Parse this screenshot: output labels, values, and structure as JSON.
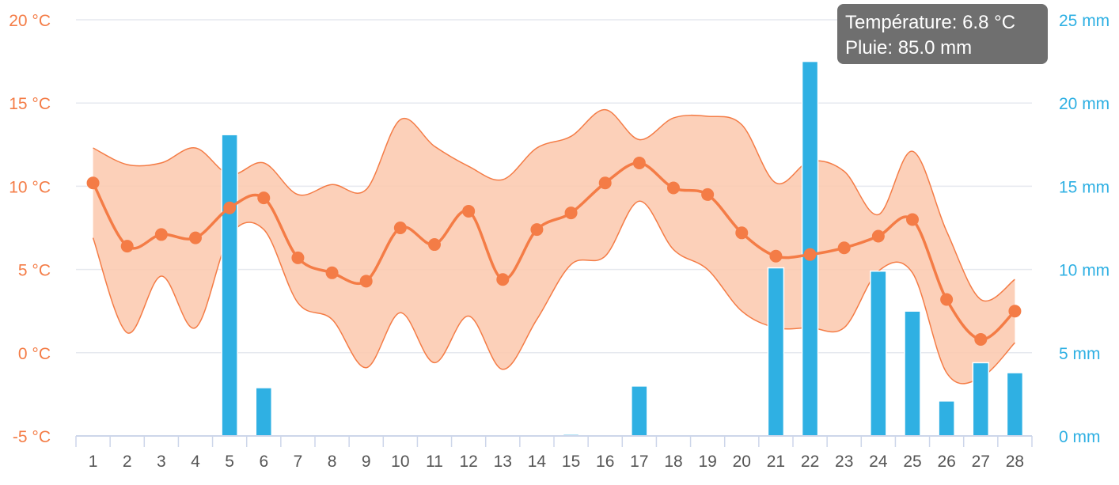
{
  "chart_data": {
    "type": "line",
    "x": [
      "1",
      "2",
      "3",
      "4",
      "5",
      "6",
      "7",
      "8",
      "9",
      "10",
      "11",
      "12",
      "13",
      "14",
      "15",
      "16",
      "17",
      "18",
      "19",
      "20",
      "21",
      "22",
      "23",
      "24",
      "25",
      "26",
      "27",
      "28"
    ],
    "y_left_ticks": [
      "20 °C",
      "15 °C",
      "10 °C",
      "5 °C",
      "0 °C",
      "-5 °C"
    ],
    "y_right_ticks": [
      "25 mm",
      "20 mm",
      "15 mm",
      "10 mm",
      "5 mm",
      "0 mm"
    ],
    "ylim_left": [
      -5,
      20
    ],
    "ylim_right": [
      0,
      25
    ],
    "grid": true,
    "series": [
      {
        "kind": "range-area",
        "color": "#f47c46",
        "low": [
          6.9,
          1.2,
          4.6,
          1.5,
          7.0,
          7.4,
          3.0,
          2.0,
          -0.9,
          2.4,
          -0.6,
          2.2,
          -1.0,
          2.0,
          5.3,
          5.8,
          9.1,
          6.2,
          5.0,
          2.5,
          1.5,
          1.5,
          1.5,
          4.9,
          4.8,
          -1.2,
          -1.5,
          0.6
        ],
        "high": [
          12.3,
          11.3,
          11.4,
          12.3,
          10.7,
          11.4,
          9.5,
          10.1,
          9.8,
          14.0,
          12.4,
          11.2,
          10.4,
          12.3,
          13.0,
          14.6,
          12.8,
          14.1,
          14.2,
          13.7,
          10.2,
          11.5,
          10.9,
          8.3,
          12.1,
          7.3,
          3.2,
          4.4
        ]
      },
      {
        "kind": "line",
        "color": "#f47c46",
        "values": [
          10.2,
          6.4,
          7.1,
          6.9,
          8.7,
          9.3,
          5.7,
          4.8,
          4.3,
          7.5,
          6.5,
          8.5,
          4.4,
          7.4,
          8.4,
          10.2,
          11.4,
          9.9,
          9.5,
          7.2,
          5.8,
          5.9,
          6.3,
          7.0,
          8.0,
          3.2,
          0.8,
          2.5
        ]
      },
      {
        "kind": "bar",
        "color": "#2fb0e3",
        "values": [
          0,
          0,
          0,
          0,
          18.1,
          2.9,
          0,
          0,
          0,
          0,
          0,
          0,
          0,
          0,
          0.1,
          0,
          3.0,
          0,
          0,
          0,
          10.1,
          22.5,
          0,
          9.9,
          7.5,
          2.1,
          4.4,
          3.8
        ]
      }
    ],
    "tooltip": {
      "line1": "Température: 6.8 °C",
      "line2": "Pluie: 85.0 mm"
    }
  },
  "colors": {
    "temperature": "#f47c46",
    "temperature_fill": "#fbc8ad",
    "rain": "#2fb0e3",
    "axis": "#cdd6ea",
    "grid": "#e6e9ef",
    "tooltip_bg": "#6f6f6f"
  }
}
